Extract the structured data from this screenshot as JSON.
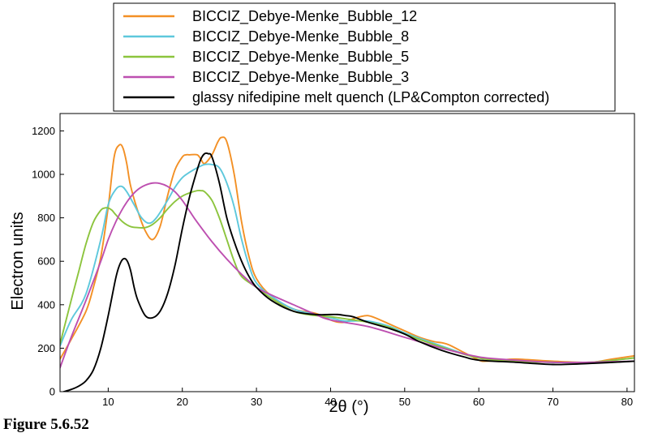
{
  "caption": "Figure 5.6.52",
  "chart_data": {
    "type": "line",
    "title": "",
    "xlabel": "2θ (°)",
    "ylabel": "Electron units",
    "xlim": [
      3.5,
      81
    ],
    "ylim": [
      0,
      1280
    ],
    "xticks": [
      10,
      20,
      30,
      40,
      50,
      60,
      70,
      80
    ],
    "yticks": [
      0,
      200,
      400,
      600,
      800,
      1000,
      1200
    ],
    "grid": false,
    "legend_position": "top-center, outside plot",
    "series": [
      {
        "name": "BICCIZ_Debye-Menke_Bubble_12",
        "color": "#f39025",
        "x": [
          3.5,
          5,
          7,
          8,
          9,
          10,
          10.8,
          11.5,
          12,
          12.5,
          13,
          14,
          15,
          16,
          17,
          18,
          19,
          20,
          20.5,
          21,
          22,
          22.5,
          23,
          24,
          24.8,
          25.3,
          26,
          27,
          28,
          29,
          30,
          32,
          35,
          38,
          40,
          41,
          42,
          43,
          44,
          45,
          46,
          48,
          50,
          52,
          54,
          55,
          56,
          58,
          60,
          61,
          63,
          65,
          70,
          75,
          78,
          81
        ],
        "y": [
          150,
          240,
          370,
          480,
          620,
          850,
          1080,
          1135,
          1120,
          1050,
          950,
          830,
          740,
          700,
          760,
          900,
          1020,
          1080,
          1090,
          1090,
          1090,
          1070,
          1050,
          1090,
          1150,
          1170,
          1150,
          1000,
          780,
          620,
          520,
          440,
          380,
          360,
          330,
          320,
          320,
          335,
          345,
          350,
          340,
          310,
          280,
          250,
          230,
          225,
          215,
          180,
          145,
          140,
          145,
          150,
          140,
          135,
          150,
          165
        ]
      },
      {
        "name": "BICCIZ_Debye-Menke_Bubble_8",
        "color": "#5ec8dc",
        "x": [
          3.5,
          5,
          7,
          9,
          10,
          11,
          11.8,
          12.5,
          13.5,
          14.5,
          15.5,
          16.5,
          18,
          19,
          20,
          21,
          22,
          23,
          24,
          25,
          26,
          27,
          28,
          29,
          30,
          32,
          35,
          38,
          40,
          42,
          45,
          48,
          50,
          55,
          60,
          65,
          70,
          75,
          81
        ],
        "y": [
          210,
          330,
          450,
          700,
          860,
          930,
          945,
          920,
          860,
          800,
          775,
          800,
          880,
          940,
          985,
          1010,
          1030,
          1045,
          1045,
          1030,
          960,
          850,
          700,
          580,
          500,
          440,
          380,
          355,
          340,
          325,
          325,
          300,
          270,
          210,
          155,
          140,
          135,
          135,
          155
        ]
      },
      {
        "name": "BICCIZ_Debye-Menke_Bubble_5",
        "color": "#8cc43d",
        "x": [
          3.5,
          5,
          6,
          7,
          8,
          9,
          9.5,
          10,
          10.5,
          11,
          12,
          13,
          14,
          15,
          16,
          17,
          18,
          19,
          20,
          21,
          22,
          22.5,
          23,
          24,
          25,
          26,
          27,
          28,
          30,
          32,
          35,
          38,
          40,
          42,
          45,
          48,
          50,
          55,
          60,
          65,
          70,
          75,
          81
        ],
        "y": [
          220,
          420,
          550,
          680,
          780,
          835,
          845,
          845,
          835,
          815,
          780,
          760,
          755,
          755,
          770,
          800,
          840,
          875,
          900,
          915,
          925,
          925,
          920,
          880,
          800,
          700,
          600,
          530,
          480,
          430,
          370,
          350,
          345,
          335,
          320,
          295,
          265,
          205,
          155,
          140,
          135,
          135,
          155
        ]
      },
      {
        "name": "BICCIZ_Debye-Menke_Bubble_3",
        "color": "#bd4fb0",
        "x": [
          3.5,
          5,
          7,
          9,
          10,
          11,
          12,
          13,
          14,
          15,
          16,
          17,
          18,
          19,
          20,
          21,
          22,
          24,
          26,
          28,
          30,
          32,
          35,
          38,
          40,
          45,
          50,
          55,
          60,
          65,
          70,
          75,
          81
        ],
        "y": [
          110,
          250,
          420,
          600,
          700,
          780,
          845,
          895,
          930,
          950,
          960,
          958,
          945,
          920,
          880,
          830,
          780,
          690,
          610,
          540,
          480,
          445,
          400,
          355,
          330,
          300,
          250,
          200,
          160,
          145,
          135,
          135,
          140
        ]
      },
      {
        "name": "glassy nifedipine melt quench (LP&Compton corrected)",
        "color": "#000000",
        "x": [
          4,
          5,
          6,
          7,
          8,
          9,
          10,
          11,
          11.5,
          12,
          12.5,
          13,
          13.5,
          14,
          15,
          16,
          17,
          18,
          19,
          20,
          21,
          22,
          22.5,
          23,
          23.5,
          24,
          25,
          26,
          27,
          28,
          29,
          30,
          32,
          35,
          38,
          40,
          41,
          42,
          43,
          45,
          48,
          50,
          52,
          55,
          58,
          60,
          65,
          70,
          75,
          81
        ],
        "y": [
          0,
          10,
          25,
          50,
          100,
          200,
          350,
          520,
          580,
          610,
          605,
          560,
          480,
          420,
          350,
          340,
          370,
          450,
          580,
          750,
          900,
          1020,
          1070,
          1095,
          1095,
          1080,
          960,
          800,
          690,
          600,
          530,
          480,
          420,
          370,
          355,
          355,
          355,
          350,
          345,
          320,
          290,
          265,
          230,
          190,
          160,
          145,
          135,
          125,
          130,
          140
        ]
      }
    ]
  }
}
